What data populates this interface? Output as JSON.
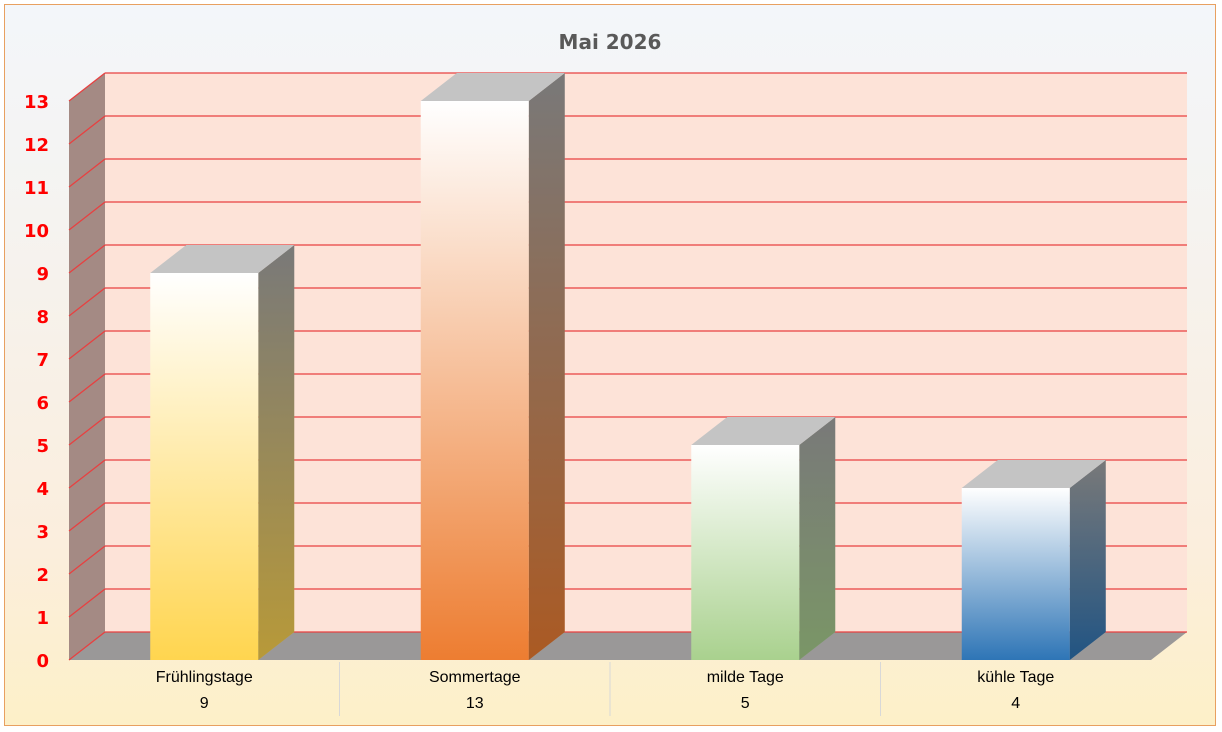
{
  "chart_data": {
    "type": "bar",
    "title": "Mai 2026",
    "categories": [
      "Frühlingstage",
      "Sommertage",
      "milde Tage",
      "kühle Tage"
    ],
    "values": [
      9,
      13,
      5,
      4
    ],
    "data_table_values": [
      "9",
      "13",
      "5",
      "4"
    ],
    "ylim": [
      0,
      13
    ],
    "yticks": [
      "0",
      "1",
      "2",
      "3",
      "4",
      "5",
      "6",
      "7",
      "8",
      "9",
      "10",
      "11",
      "12",
      "13"
    ],
    "grid": true,
    "legend": "none",
    "style": "3d-column",
    "colors": {
      "bars": [
        "#ffd54f",
        "#ed7d31",
        "#a9d18e",
        "#2e75b6"
      ],
      "gridline": "#e84040",
      "wall": "#fde3d8",
      "tick_labels": "#ff0000"
    }
  }
}
